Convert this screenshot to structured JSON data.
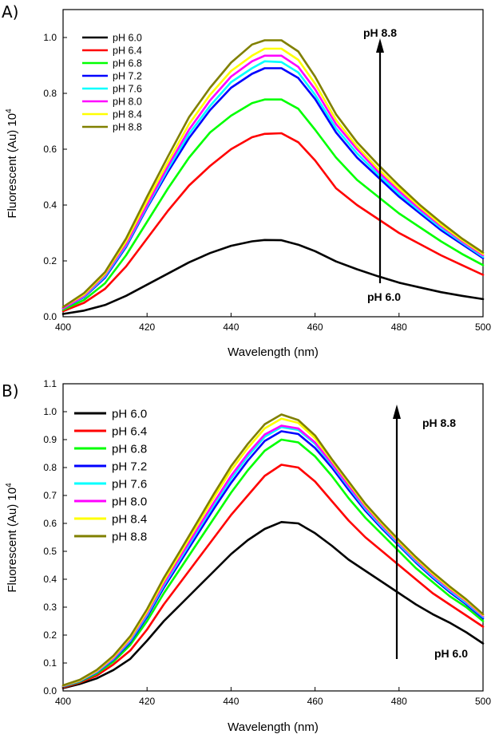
{
  "chart_data": [
    {
      "type": "line",
      "panel_label": "A)",
      "xlabel": "Wavelength (nm)",
      "ylabel": "Fluorescent (Au) 10",
      "ylabel_sup": "4",
      "xlim": [
        400,
        500
      ],
      "ylim": [
        0.0,
        1.1
      ],
      "xticks": [
        "400",
        "420",
        "440",
        "460",
        "480",
        "500"
      ],
      "yticks": [
        "0.0",
        "0.2",
        "0.4",
        "0.6",
        "0.8",
        "1.0"
      ],
      "legend_position": "top-left",
      "annotations": {
        "top": "pH 8.8",
        "bottom": "pH 6.0"
      },
      "x": [
        400,
        405,
        410,
        415,
        420,
        425,
        430,
        435,
        440,
        445,
        448,
        452,
        456,
        460,
        465,
        470,
        475,
        480,
        485,
        490,
        495,
        500
      ],
      "series": [
        {
          "name": "pH 6.0",
          "color": "#000000",
          "values": [
            0.01,
            0.022,
            0.042,
            0.075,
            0.115,
            0.155,
            0.195,
            0.228,
            0.254,
            0.27,
            0.275,
            0.274,
            0.258,
            0.235,
            0.198,
            0.17,
            0.145,
            0.122,
            0.105,
            0.088,
            0.075,
            0.063
          ]
        },
        {
          "name": "pH 6.4",
          "color": "#ff0000",
          "values": [
            0.02,
            0.05,
            0.1,
            0.18,
            0.28,
            0.38,
            0.47,
            0.54,
            0.6,
            0.643,
            0.655,
            0.657,
            0.625,
            0.56,
            0.46,
            0.4,
            0.35,
            0.3,
            0.26,
            0.22,
            0.185,
            0.15
          ]
        },
        {
          "name": "pH 6.8",
          "color": "#00ff00",
          "values": [
            0.025,
            0.06,
            0.12,
            0.22,
            0.34,
            0.46,
            0.57,
            0.66,
            0.72,
            0.765,
            0.778,
            0.778,
            0.745,
            0.67,
            0.57,
            0.49,
            0.43,
            0.37,
            0.32,
            0.27,
            0.225,
            0.185
          ]
        },
        {
          "name": "pH 7.2",
          "color": "#0000ff",
          "values": [
            0.03,
            0.07,
            0.14,
            0.25,
            0.39,
            0.52,
            0.64,
            0.74,
            0.82,
            0.87,
            0.89,
            0.89,
            0.855,
            0.78,
            0.66,
            0.57,
            0.5,
            0.43,
            0.37,
            0.31,
            0.26,
            0.21
          ]
        },
        {
          "name": "pH 7.6",
          "color": "#00ffff",
          "values": [
            0.03,
            0.072,
            0.145,
            0.255,
            0.395,
            0.53,
            0.655,
            0.755,
            0.84,
            0.89,
            0.915,
            0.912,
            0.875,
            0.795,
            0.675,
            0.585,
            0.51,
            0.44,
            0.378,
            0.318,
            0.266,
            0.215
          ]
        },
        {
          "name": "pH 8.0",
          "color": "#ff00ff",
          "values": [
            0.03,
            0.075,
            0.15,
            0.26,
            0.4,
            0.54,
            0.67,
            0.775,
            0.86,
            0.915,
            0.935,
            0.935,
            0.895,
            0.815,
            0.69,
            0.6,
            0.52,
            0.45,
            0.385,
            0.325,
            0.27,
            0.22
          ]
        },
        {
          "name": "pH 8.4",
          "color": "#ffff00",
          "values": [
            0.035,
            0.08,
            0.155,
            0.27,
            0.415,
            0.555,
            0.69,
            0.795,
            0.88,
            0.935,
            0.96,
            0.96,
            0.92,
            0.835,
            0.705,
            0.61,
            0.53,
            0.46,
            0.393,
            0.33,
            0.275,
            0.225
          ]
        },
        {
          "name": "pH 8.8",
          "color": "#808000",
          "values": [
            0.035,
            0.085,
            0.16,
            0.28,
            0.43,
            0.575,
            0.715,
            0.82,
            0.91,
            0.975,
            0.99,
            0.99,
            0.95,
            0.86,
            0.725,
            0.625,
            0.545,
            0.47,
            0.4,
            0.338,
            0.28,
            0.23
          ]
        }
      ]
    },
    {
      "type": "line",
      "panel_label": "B)",
      "xlabel": "Wavelength (nm)",
      "ylabel": "Fluorescent (Au)  10",
      "ylabel_sup": "4",
      "xlim": [
        400,
        500
      ],
      "ylim": [
        0.0,
        1.1
      ],
      "xticks": [
        "400",
        "420",
        "440",
        "460",
        "480",
        "500"
      ],
      "yticks": [
        "0.0",
        "0.1",
        "0.2",
        "0.3",
        "0.4",
        "0.5",
        "0.6",
        "0.7",
        "0.8",
        "0.9",
        "1.0",
        "1.1"
      ],
      "legend_position": "top-left",
      "annotations": {
        "top": "pH 8.8",
        "bottom": "pH 6.0"
      },
      "x": [
        400,
        404,
        408,
        412,
        416,
        420,
        424,
        428,
        432,
        436,
        440,
        444,
        448,
        452,
        456,
        460,
        464,
        468,
        472,
        476,
        480,
        484,
        488,
        492,
        496,
        500
      ],
      "series": [
        {
          "name": "pH 6.0",
          "color": "#000000",
          "values": [
            0.01,
            0.025,
            0.045,
            0.075,
            0.115,
            0.18,
            0.25,
            0.31,
            0.37,
            0.43,
            0.49,
            0.54,
            0.58,
            0.605,
            0.6,
            0.565,
            0.52,
            0.47,
            0.43,
            0.39,
            0.35,
            0.31,
            0.275,
            0.245,
            0.21,
            0.17
          ]
        },
        {
          "name": "pH 6.4",
          "color": "#ff0000",
          "values": [
            0.012,
            0.03,
            0.055,
            0.095,
            0.145,
            0.22,
            0.31,
            0.39,
            0.47,
            0.55,
            0.63,
            0.7,
            0.77,
            0.81,
            0.8,
            0.75,
            0.68,
            0.61,
            0.55,
            0.5,
            0.45,
            0.4,
            0.35,
            0.31,
            0.27,
            0.23
          ]
        },
        {
          "name": "pH 6.8",
          "color": "#00ff00",
          "values": [
            0.015,
            0.033,
            0.062,
            0.105,
            0.165,
            0.25,
            0.35,
            0.44,
            0.53,
            0.62,
            0.71,
            0.79,
            0.86,
            0.9,
            0.89,
            0.84,
            0.77,
            0.69,
            0.62,
            0.56,
            0.5,
            0.44,
            0.39,
            0.34,
            0.3,
            0.25
          ]
        },
        {
          "name": "pH 7.2",
          "color": "#0000ff",
          "values": [
            0.016,
            0.035,
            0.066,
            0.112,
            0.175,
            0.265,
            0.37,
            0.465,
            0.56,
            0.655,
            0.745,
            0.825,
            0.895,
            0.93,
            0.92,
            0.87,
            0.8,
            0.72,
            0.645,
            0.58,
            0.52,
            0.46,
            0.405,
            0.355,
            0.31,
            0.26
          ]
        },
        {
          "name": "pH 7.6",
          "color": "#00ffff",
          "values": [
            0.017,
            0.036,
            0.068,
            0.115,
            0.18,
            0.272,
            0.378,
            0.475,
            0.572,
            0.668,
            0.76,
            0.84,
            0.91,
            0.945,
            0.935,
            0.885,
            0.81,
            0.73,
            0.652,
            0.586,
            0.525,
            0.465,
            0.41,
            0.36,
            0.315,
            0.265
          ]
        },
        {
          "name": "pH 8.0",
          "color": "#ff00ff",
          "values": [
            0.018,
            0.037,
            0.07,
            0.118,
            0.185,
            0.278,
            0.385,
            0.483,
            0.58,
            0.677,
            0.77,
            0.85,
            0.918,
            0.95,
            0.94,
            0.89,
            0.815,
            0.735,
            0.658,
            0.592,
            0.53,
            0.47,
            0.415,
            0.365,
            0.32,
            0.268
          ]
        },
        {
          "name": "pH 8.4",
          "color": "#ffff00",
          "values": [
            0.019,
            0.038,
            0.072,
            0.122,
            0.19,
            0.285,
            0.395,
            0.495,
            0.595,
            0.695,
            0.79,
            0.87,
            0.94,
            0.975,
            0.96,
            0.905,
            0.825,
            0.745,
            0.665,
            0.598,
            0.535,
            0.475,
            0.42,
            0.37,
            0.324,
            0.272
          ]
        },
        {
          "name": "pH 8.8",
          "color": "#808000",
          "values": [
            0.02,
            0.04,
            0.075,
            0.126,
            0.196,
            0.293,
            0.405,
            0.505,
            0.606,
            0.708,
            0.805,
            0.885,
            0.955,
            0.99,
            0.97,
            0.915,
            0.83,
            0.75,
            0.67,
            0.603,
            0.54,
            0.48,
            0.425,
            0.375,
            0.328,
            0.275
          ]
        }
      ]
    }
  ]
}
